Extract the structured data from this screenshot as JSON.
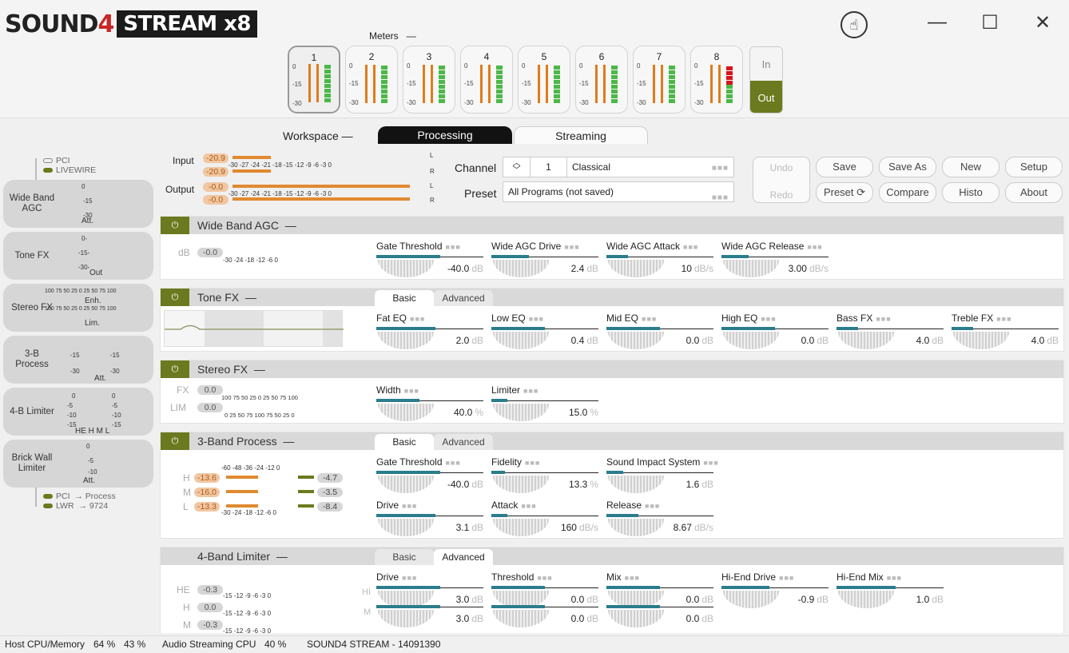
{
  "app": {
    "logo_sound": "SOUND",
    "logo_four": "4",
    "logo_stream": "STREAM x8"
  },
  "header": {
    "meters_label": "Meters",
    "meters_collapse": "—",
    "channels": [
      {
        "num": "1"
      },
      {
        "num": "2"
      },
      {
        "num": "3"
      },
      {
        "num": "4"
      },
      {
        "num": "5"
      },
      {
        "num": "6"
      },
      {
        "num": "7"
      },
      {
        "num": "8"
      }
    ],
    "meter_scale": [
      "0",
      "-15",
      "-30"
    ],
    "in_label": "In",
    "out_label": "Out",
    "window": {
      "minimize": "—",
      "maximize": "☐",
      "close": "✕"
    }
  },
  "main_tabs": {
    "workspace": "Workspace",
    "workspace_dash": "—",
    "processing": "Processing",
    "streaming": "Streaming"
  },
  "io_meter": {
    "input_label": "Input",
    "output_label": "Output",
    "input_l": "-20.9",
    "input_r": "-20.9",
    "output_l": "-0.0",
    "output_r": "-0.0",
    "scale": "-30    -27    -24    -21    -18    -15    -12     -9     -6     -3     0",
    "l": "L",
    "r": "R"
  },
  "channel": {
    "label": "Channel",
    "number": "1",
    "name": "Classical",
    "preset_label": "Preset",
    "preset_value": "All Programs (not saved)"
  },
  "buttons": {
    "undo": "Undo",
    "redo": "Redo",
    "save": "Save",
    "save_as": "Save As",
    "new": "New",
    "setup": "Setup",
    "preset": "Preset",
    "compare": "Compare",
    "histo": "Histo",
    "about": "About"
  },
  "sidebar": {
    "pci_top": "PCI",
    "livewire": "LIVEWIRE",
    "blocks": [
      {
        "label": "Wide Band AGC",
        "caption": "Att.",
        "s1": "0",
        "s2": "-15",
        "s3": "-30"
      },
      {
        "label": "Tone FX",
        "caption": "Out",
        "s1": "0-",
        "s2": "-15-",
        "s3": "-30-"
      },
      {
        "label": "Stereo FX",
        "caption": "Enh.",
        "caption2": "Lim.",
        "scale": "100 75 50 25  0  25 50 75 100"
      },
      {
        "label": "3-B Process",
        "caption": "Att.",
        "s1": "-15",
        "s2": "-30"
      },
      {
        "label": "4-B Limiter",
        "caption": "HE H M L",
        "s1": "0",
        "s2": "-5",
        "s3": "-10",
        "s4": "-15"
      },
      {
        "label": "Brick Wall Limiter",
        "caption": "Att.",
        "s1": "0",
        "s2": "-5",
        "s3": "-10"
      }
    ],
    "pci_bottom": "PCI",
    "lwr": "LWR",
    "to_process": "→ Process",
    "to_9724": "→ 9724"
  },
  "wide_band_agc": {
    "title": "Wide Band AGC",
    "dash": "—",
    "db_label": "dB",
    "db_value": "-0.0",
    "scale": "-30       -24       -18       -12        -6         0",
    "controls": [
      {
        "label": "Gate Threshold",
        "value": "-40.0",
        "unit": "dB",
        "level": 0.6
      },
      {
        "label": "Wide AGC Drive",
        "value": "2.4",
        "unit": "dB",
        "level": 0.35
      },
      {
        "label": "Wide AGC Attack",
        "value": "10",
        "unit": "dB/s",
        "level": 0.2
      },
      {
        "label": "Wide AGC Release",
        "value": "3.00",
        "unit": "dB/s",
        "level": 0.25
      }
    ]
  },
  "tone_fx": {
    "title": "Tone FX",
    "dash": "—",
    "tab_basic": "Basic",
    "tab_advanced": "Advanced",
    "controls": [
      {
        "label": "Fat EQ",
        "value": "2.0",
        "unit": "dB",
        "level": 0.55
      },
      {
        "label": "Low EQ",
        "value": "0.4",
        "unit": "dB",
        "level": 0.5
      },
      {
        "label": "Mid EQ",
        "value": "0.0",
        "unit": "dB",
        "level": 0.5
      },
      {
        "label": "High EQ",
        "value": "0.0",
        "unit": "dB",
        "level": 0.5
      },
      {
        "label": "Bass FX",
        "value": "4.0",
        "unit": "dB",
        "level": 0.2
      },
      {
        "label": "Treble FX",
        "value": "4.0",
        "unit": "dB",
        "level": 0.2
      }
    ]
  },
  "stereo_fx": {
    "title": "Stereo FX",
    "dash": "—",
    "fx_label": "FX",
    "fx_value": "0.0",
    "lim_label": "LIM",
    "lim_value": "0.0",
    "scale_fx": "100  75  50  25   0   25  50  75 100",
    "scale_lim": "0   25  50  75 100  75  50  25   0",
    "controls": [
      {
        "label": "Width",
        "value": "40.0",
        "unit": "%",
        "level": 0.4
      },
      {
        "label": "Limiter",
        "value": "15.0",
        "unit": "%",
        "level": 0.15
      }
    ]
  },
  "three_band": {
    "title": "3-Band Process",
    "dash": "—",
    "tab_basic": "Basic",
    "tab_advanced": "Advanced",
    "scale_top": "-60     -48     -36     -24    -12      0",
    "scale_bottom": "-30     -24     -18     -12     -6      0",
    "bands": [
      {
        "name": "H",
        "left": "-13.6",
        "right": "-4.7"
      },
      {
        "name": "M",
        "left": "-16.0",
        "right": "-3.5"
      },
      {
        "name": "L",
        "left": "-13.3",
        "right": "-8.4"
      }
    ],
    "controls": [
      {
        "label": "Gate Threshold",
        "value": "-40.0",
        "unit": "dB",
        "level": 0.6
      },
      {
        "label": "Fidelity",
        "value": "13.3",
        "unit": "%",
        "level": 0.13
      },
      {
        "label": "Sound Impact System",
        "value": "1.6",
        "unit": "dB",
        "level": 0.16
      },
      {
        "label": "Drive",
        "value": "3.1",
        "unit": "dB",
        "level": 0.55
      },
      {
        "label": "Attack",
        "value": "160",
        "unit": "dB/s",
        "level": 0.15
      },
      {
        "label": "Release",
        "value": "8.67",
        "unit": "dB/s",
        "level": 0.3
      }
    ]
  },
  "four_band": {
    "title": "4-Band Limiter",
    "dash": "—",
    "tab_basic": "Basic",
    "tab_advanced": "Advanced",
    "scale": "-15     -12      -9      -6      -3       0",
    "bands": [
      {
        "name": "HE",
        "value": "-0.3"
      },
      {
        "name": "H",
        "value": "0.0"
      },
      {
        "name": "M",
        "value": "-0.3"
      }
    ],
    "row_labels": [
      "HI",
      "M"
    ],
    "controls_row1": [
      {
        "label": "Drive",
        "value": "3.0",
        "unit": "dB",
        "level": 0.6
      },
      {
        "label": "Threshold",
        "value": "0.0",
        "unit": "dB",
        "level": 0.5
      },
      {
        "label": "Mix",
        "value": "0.0",
        "unit": "dB",
        "level": 0.5
      },
      {
        "label": "Hi-End Drive",
        "value": "-0.9",
        "unit": "dB",
        "level": 0.45
      },
      {
        "label": "Hi-End Mix",
        "value": "1.0",
        "unit": "dB",
        "level": 0.55
      }
    ],
    "controls_row2": [
      {
        "value": "3.0",
        "unit": "dB",
        "level": 0.6
      },
      {
        "value": "0.0",
        "unit": "dB",
        "level": 0.5
      },
      {
        "value": "0.0",
        "unit": "dB",
        "level": 0.5
      }
    ]
  },
  "status": {
    "host": "Host CPU/Memory",
    "cpu": "64 %",
    "mem": "43 %",
    "audio": "Audio Streaming CPU",
    "audio_val": "40 %",
    "device": "SOUND4 STREAM - 14091390"
  },
  "colors": {
    "accent": "#6b7a1e",
    "knob_fill": "#2a7d8c",
    "meter_orange": "#e07b1a",
    "meter_green": "#4cb848"
  }
}
